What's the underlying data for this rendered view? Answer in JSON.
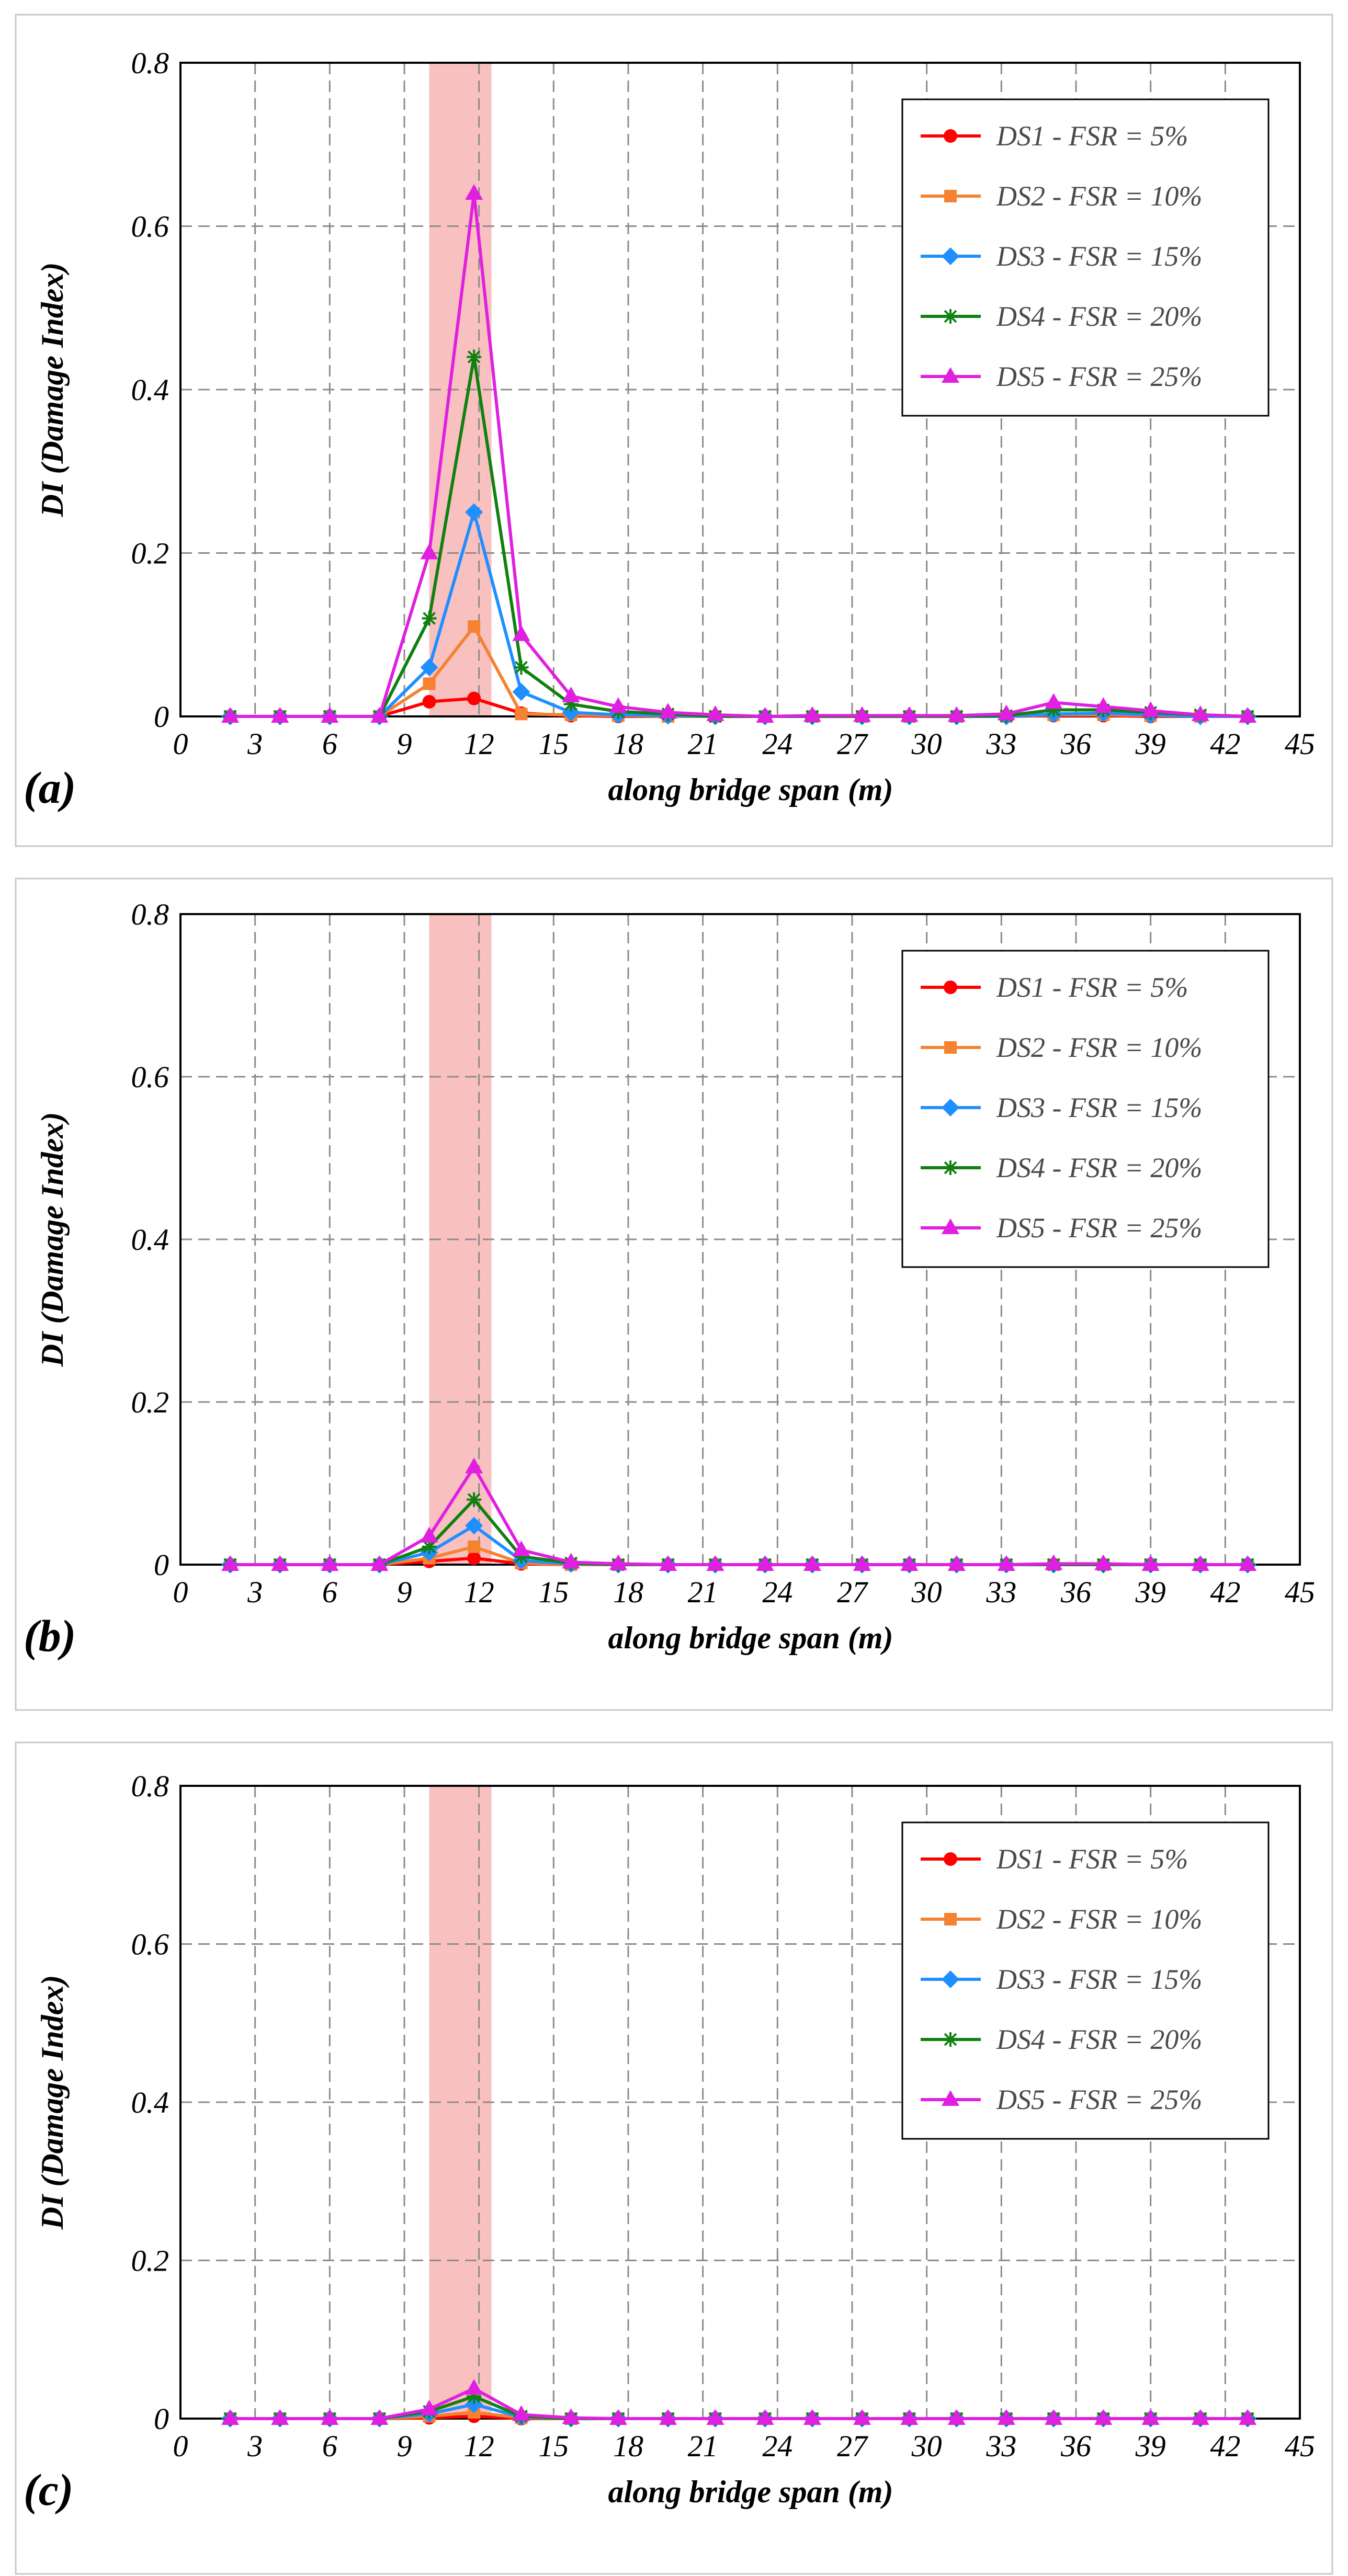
{
  "chart_data": [
    {
      "type": "line",
      "panel_label": "(a)",
      "xlabel": "along bridge span (m)",
      "ylabel": "DI (Damage Index)",
      "xlim": [
        0,
        45
      ],
      "ylim": [
        0,
        0.8
      ],
      "xticks": [
        "0",
        "3",
        "6",
        "9",
        "12",
        "15",
        "18",
        "21",
        "24",
        "27",
        "30",
        "33",
        "36",
        "39",
        "42",
        "45"
      ],
      "yticks": [
        "0",
        "0.2",
        "0.4",
        "0.6",
        "0.8"
      ],
      "highlight_band": [
        10,
        12.5
      ],
      "legend_position": "top-right",
      "x": [
        2,
        4,
        6,
        8,
        10,
        11.8,
        13.7,
        15.7,
        17.6,
        19.6,
        21.5,
        23.5,
        25.4,
        27.4,
        29.3,
        31.2,
        33.2,
        35.1,
        37.1,
        39,
        41,
        42.9
      ],
      "series": [
        {
          "name": "DS1 - FSR = 5%",
          "color": "#ff0000",
          "marker": "circle",
          "values": [
            0,
            0,
            0,
            0,
            0.018,
            0.022,
            0.004,
            0.001,
            0,
            0,
            0,
            0,
            0,
            0,
            0,
            0,
            0,
            0.001,
            0.001,
            0,
            0,
            0
          ]
        },
        {
          "name": "DS2 - FSR = 10%",
          "color": "#f58231",
          "marker": "square",
          "values": [
            0,
            0,
            0,
            0,
            0.04,
            0.11,
            0.003,
            0.002,
            0.001,
            0,
            0,
            0,
            0,
            0,
            0,
            0,
            0,
            0.002,
            0.002,
            0.001,
            0,
            0
          ]
        },
        {
          "name": "DS3 - FSR = 15%",
          "color": "#1f8fff",
          "marker": "diamond",
          "values": [
            0,
            0,
            0,
            0,
            0.06,
            0.25,
            0.03,
            0.005,
            0.002,
            0.001,
            0,
            0,
            0,
            0,
            0,
            0,
            0,
            0.003,
            0.004,
            0.002,
            0,
            0
          ]
        },
        {
          "name": "DS4 - FSR = 20%",
          "color": "#108010",
          "marker": "star",
          "values": [
            0,
            0,
            0,
            0,
            0.12,
            0.44,
            0.06,
            0.015,
            0.006,
            0.003,
            0,
            0,
            0,
            0,
            0,
            0,
            0.001,
            0.008,
            0.008,
            0.005,
            0.002,
            0
          ]
        },
        {
          "name": "DS5 - FSR = 25%",
          "color": "#e01fe0",
          "marker": "triangle",
          "values": [
            0,
            0,
            0,
            0,
            0.2,
            0.64,
            0.1,
            0.025,
            0.012,
            0.005,
            0.002,
            0,
            0.001,
            0.001,
            0.001,
            0.001,
            0.003,
            0.017,
            0.012,
            0.007,
            0.002,
            0
          ]
        }
      ]
    },
    {
      "type": "line",
      "panel_label": "(b)",
      "xlabel": "along bridge span (m)",
      "ylabel": "DI (Damage Index)",
      "xlim": [
        0,
        45
      ],
      "ylim": [
        0,
        0.8
      ],
      "xticks": [
        "0",
        "3",
        "6",
        "9",
        "12",
        "15",
        "18",
        "21",
        "24",
        "27",
        "30",
        "33",
        "36",
        "39",
        "42",
        "45"
      ],
      "yticks": [
        "0",
        "0.2",
        "0.4",
        "0.6",
        "0.8"
      ],
      "highlight_band": [
        10,
        12.5
      ],
      "legend_position": "top-right",
      "x": [
        2,
        4,
        6,
        8,
        10,
        11.8,
        13.7,
        15.7,
        17.6,
        19.6,
        21.5,
        23.5,
        25.4,
        27.4,
        29.3,
        31.2,
        33.2,
        35.1,
        37.1,
        39,
        41,
        42.9
      ],
      "series": [
        {
          "name": "DS1 - FSR = 5%",
          "color": "#ff0000",
          "marker": "circle",
          "values": [
            0,
            0,
            0,
            0,
            0.004,
            0.008,
            0.001,
            0,
            0,
            0,
            0,
            0,
            0,
            0,
            0,
            0,
            0,
            0,
            0,
            0,
            0,
            0
          ]
        },
        {
          "name": "DS2 - FSR = 10%",
          "color": "#f58231",
          "marker": "square",
          "values": [
            0,
            0,
            0,
            0,
            0.008,
            0.022,
            0.002,
            0,
            0,
            0,
            0,
            0,
            0,
            0,
            0,
            0,
            0,
            0,
            0,
            0,
            0,
            0
          ]
        },
        {
          "name": "DS3 - FSR = 15%",
          "color": "#1f8fff",
          "marker": "diamond",
          "values": [
            0,
            0,
            0,
            0,
            0.015,
            0.048,
            0.005,
            0.001,
            0,
            0,
            0,
            0,
            0,
            0,
            0,
            0,
            0,
            0,
            0,
            0,
            0,
            0
          ]
        },
        {
          "name": "DS4 - FSR = 20%",
          "color": "#108010",
          "marker": "star",
          "values": [
            0,
            0,
            0,
            0,
            0.022,
            0.08,
            0.01,
            0.002,
            0,
            0,
            0,
            0,
            0,
            0,
            0,
            0,
            0,
            0,
            0,
            0,
            0,
            0
          ]
        },
        {
          "name": "DS5 - FSR = 25%",
          "color": "#e01fe0",
          "marker": "triangle",
          "values": [
            0,
            0,
            0,
            0,
            0.035,
            0.12,
            0.018,
            0.003,
            0.001,
            0,
            0,
            0,
            0,
            0,
            0,
            0,
            0,
            0.001,
            0.001,
            0,
            0,
            0
          ]
        }
      ]
    },
    {
      "type": "line",
      "panel_label": "(c)",
      "xlabel": "along bridge span (m)",
      "ylabel": "DI (Damage Index)",
      "xlim": [
        0,
        45
      ],
      "ylim": [
        0,
        0.8
      ],
      "xticks": [
        "0",
        "3",
        "6",
        "9",
        "12",
        "15",
        "18",
        "21",
        "24",
        "27",
        "30",
        "33",
        "36",
        "39",
        "42",
        "45"
      ],
      "yticks": [
        "0",
        "0.2",
        "0.4",
        "0.6",
        "0.8"
      ],
      "highlight_band": [
        10,
        12.5
      ],
      "legend_position": "top-right",
      "x": [
        2,
        4,
        6,
        8,
        10,
        11.8,
        13.7,
        15.7,
        17.6,
        19.6,
        21.5,
        23.5,
        25.4,
        27.4,
        29.3,
        31.2,
        33.2,
        35.1,
        37.1,
        39,
        41,
        42.9
      ],
      "series": [
        {
          "name": "DS1 - FSR = 5%",
          "color": "#ff0000",
          "marker": "circle",
          "values": [
            0,
            0,
            0,
            0,
            0.001,
            0.003,
            0,
            0,
            0,
            0,
            0,
            0,
            0,
            0,
            0,
            0,
            0,
            0,
            0,
            0,
            0,
            0
          ]
        },
        {
          "name": "DS2 - FSR = 10%",
          "color": "#f58231",
          "marker": "square",
          "values": [
            0,
            0,
            0,
            0,
            0.003,
            0.008,
            0.001,
            0,
            0,
            0,
            0,
            0,
            0,
            0,
            0,
            0,
            0,
            0,
            0,
            0,
            0,
            0
          ]
        },
        {
          "name": "DS3 - FSR = 15%",
          "color": "#1f8fff",
          "marker": "diamond",
          "values": [
            0,
            0,
            0,
            0,
            0.006,
            0.018,
            0.002,
            0,
            0,
            0,
            0,
            0,
            0,
            0,
            0,
            0,
            0,
            0,
            0,
            0,
            0,
            0
          ]
        },
        {
          "name": "DS4 - FSR = 20%",
          "color": "#108010",
          "marker": "star",
          "values": [
            0,
            0,
            0,
            0,
            0.009,
            0.028,
            0.003,
            0,
            0,
            0,
            0,
            0,
            0,
            0,
            0,
            0,
            0,
            0,
            0,
            0,
            0,
            0
          ]
        },
        {
          "name": "DS5 - FSR = 25%",
          "color": "#e01fe0",
          "marker": "triangle",
          "values": [
            0,
            0,
            0,
            0,
            0.012,
            0.038,
            0.005,
            0.001,
            0,
            0,
            0,
            0,
            0,
            0,
            0,
            0,
            0,
            0,
            0,
            0,
            0,
            0
          ]
        }
      ]
    }
  ]
}
